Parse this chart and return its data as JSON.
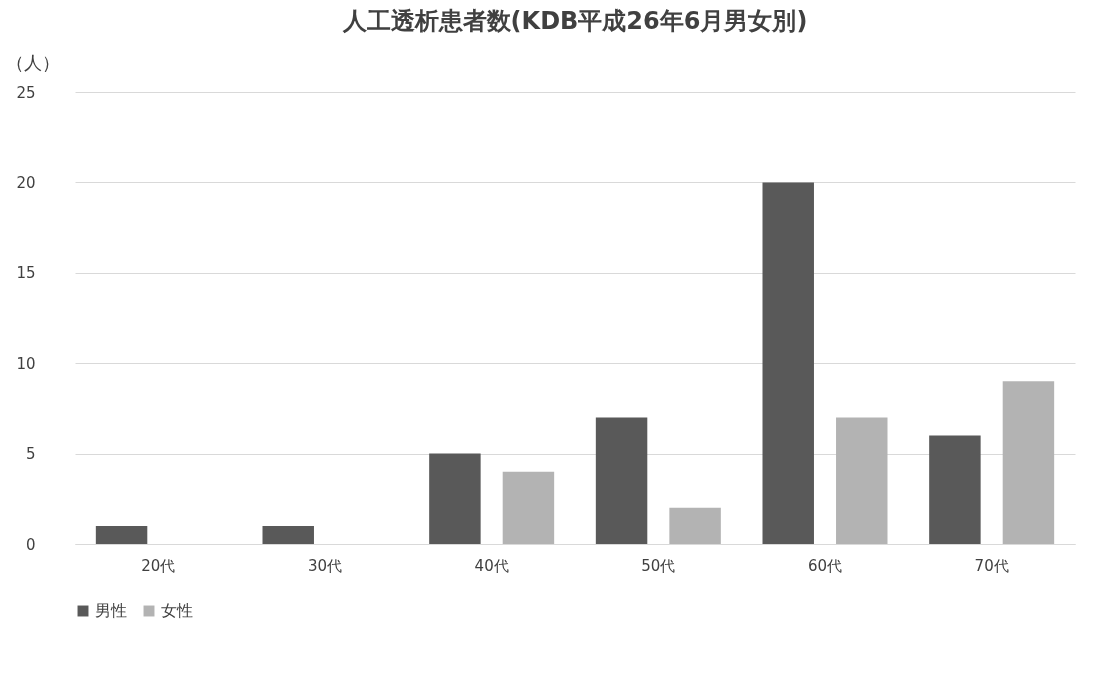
{
  "chart_data": {
    "type": "bar",
    "title": "人工透析患者数(KDB平成26年6月男女別)",
    "ylabel": "（人）",
    "categories": [
      "20代",
      "30代",
      "40代",
      "50代",
      "60代",
      "70代"
    ],
    "series": [
      {
        "name": "男性",
        "color": "#595959",
        "values": [
          1,
          1,
          5,
          7,
          20,
          6
        ]
      },
      {
        "name": "女性",
        "color": "#b3b3b3",
        "values": [
          0,
          0,
          4,
          2,
          7,
          9
        ]
      }
    ],
    "ylim": [
      0,
      25
    ],
    "yticks": [
      0,
      5,
      10,
      15,
      20,
      25
    ],
    "grid": "y",
    "legend": "bottom"
  }
}
